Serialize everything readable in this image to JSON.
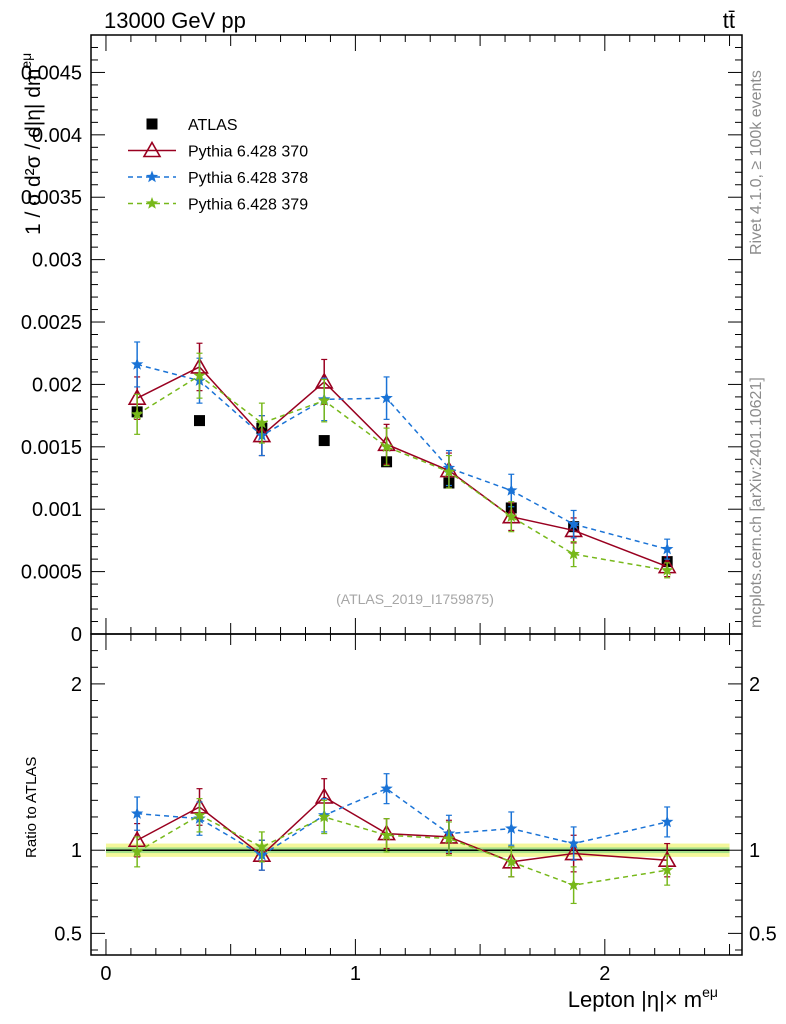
{
  "header": {
    "energy_label": "13000 GeV pp",
    "process_label": "tt̄"
  },
  "side_labels": {
    "rivet": "Rivet 4.1.0, ≥ 100k events",
    "source": "mcplots.cern.ch [arXiv:2401.10621]"
  },
  "watermark": "(ATLAS_2019_I1759875)",
  "chart_data": [
    {
      "type": "scatter",
      "panel": "main",
      "ylabel": "1 / σ  d²σ / d|η| dm^eμ",
      "ylim": [
        0,
        0.0048
      ],
      "yticks": [
        0,
        0.0005,
        0.001,
        0.0015,
        0.002,
        0.0025,
        0.003,
        0.0035,
        0.004,
        0.0045
      ],
      "ytick_labels": [
        "0",
        "0.0005",
        "0.001",
        "0.0015",
        "0.002",
        "0.0025",
        "0.003",
        "0.0035",
        "0.004",
        "0.0045"
      ],
      "x": [
        0.125,
        0.375,
        0.625,
        0.875,
        1.125,
        1.375,
        1.625,
        1.875,
        2.25
      ],
      "legend_position": "top-left",
      "series": [
        {
          "name": "ATLAS",
          "color": "#000000",
          "marker": "square",
          "line": "none",
          "values": [
            0.00178,
            0.00171,
            0.00165,
            0.00155,
            0.00138,
            0.00121,
            0.00101,
            0.00086,
            0.00058
          ],
          "errors": [
            3e-05,
            3e-05,
            3e-05,
            3e-05,
            3e-05,
            3e-05,
            3e-05,
            2e-05,
            2e-05
          ]
        },
        {
          "name": "Pythia 6.428 370",
          "color": "#990020",
          "marker": "triangle-open",
          "line": "solid",
          "values": [
            0.00189,
            0.00214,
            0.00159,
            0.00202,
            0.00152,
            0.00131,
            0.00094,
            0.00083,
            0.00054
          ],
          "errors": [
            0.00017,
            0.00019,
            0.00016,
            0.00018,
            0.00016,
            0.00014,
            0.00011,
            0.0001,
            8e-05
          ]
        },
        {
          "name": "Pythia 6.428 378",
          "color": "#1a73d6",
          "marker": "star",
          "line": "dashed",
          "values": [
            0.00216,
            0.00203,
            0.00159,
            0.00188,
            0.00189,
            0.00133,
            0.00115,
            0.00088,
            0.00068
          ],
          "errors": [
            0.00018,
            0.00018,
            0.00016,
            0.00017,
            0.00017,
            0.00014,
            0.00013,
            0.00011,
            8e-05
          ]
        },
        {
          "name": "Pythia 6.428 379",
          "color": "#77b81a",
          "marker": "star",
          "line": "dashed",
          "values": [
            0.00176,
            0.00207,
            0.00169,
            0.00187,
            0.0015,
            0.0013,
            0.00094,
            0.00064,
            0.00051
          ],
          "errors": [
            0.00016,
            0.00018,
            0.00016,
            0.00017,
            0.00015,
            0.00013,
            0.00012,
            0.0001,
            6e-05
          ]
        }
      ]
    },
    {
      "type": "scatter",
      "panel": "ratio",
      "ylabel": "Ratio to ATLAS",
      "xlabel": "Lepton |η|× m^eμ",
      "ylim": [
        0.37,
        2.3
      ],
      "yticks": [
        0.5,
        1,
        2
      ],
      "ytick_labels": [
        "0.5",
        "1",
        "2"
      ],
      "xlim": [
        -0.06,
        2.55
      ],
      "xticks": [
        0,
        1,
        2
      ],
      "xtick_labels": [
        "0",
        "1",
        "2"
      ],
      "x": [
        0.125,
        0.375,
        0.625,
        0.875,
        1.125,
        1.375,
        1.625,
        1.875,
        2.25
      ],
      "band": {
        "inner_halfwidth": 0.017,
        "outer_halfwidth": 0.04
      },
      "series": [
        {
          "name": "Pythia 6.428 370",
          "values": [
            1.06,
            1.26,
            0.97,
            1.32,
            1.1,
            1.08,
            0.93,
            0.98,
            0.94
          ],
          "errors": [
            0.1,
            0.11,
            0.09,
            0.11,
            0.09,
            0.1,
            0.09,
            0.11,
            0.1
          ]
        },
        {
          "name": "Pythia 6.428 378",
          "values": [
            1.22,
            1.19,
            0.97,
            1.21,
            1.37,
            1.1,
            1.13,
            1.04,
            1.17
          ],
          "errors": [
            0.1,
            0.1,
            0.09,
            0.1,
            0.09,
            0.11,
            0.1,
            0.1,
            0.09
          ]
        },
        {
          "name": "Pythia 6.428 379",
          "values": [
            0.99,
            1.21,
            1.02,
            1.2,
            1.09,
            1.07,
            0.93,
            0.79,
            0.88
          ],
          "errors": [
            0.09,
            0.1,
            0.09,
            0.1,
            0.1,
            0.1,
            0.09,
            0.11,
            0.09
          ]
        }
      ]
    }
  ]
}
